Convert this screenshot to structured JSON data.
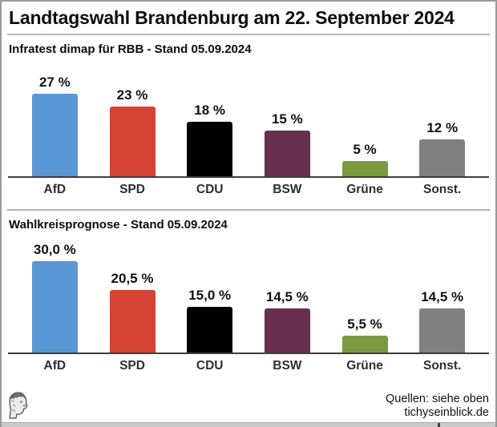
{
  "title": "Landtagswahl Brandenburg am 22. September 2024",
  "chart_data": [
    {
      "type": "bar",
      "title": "Infratest dimap für RBB - Stand 05.09.2024",
      "categories": [
        "AfD",
        "SPD",
        "CDU",
        "BSW",
        "Grüne",
        "Sonst."
      ],
      "values": [
        27,
        23,
        18,
        15,
        5,
        12
      ],
      "value_labels": [
        "27 %",
        "23 %",
        "18 %",
        "15 %",
        "5 %",
        "12 %"
      ],
      "colors": [
        "#5b97d4",
        "#d54434",
        "#000000",
        "#67304f",
        "#7a9a40",
        "#808080"
      ],
      "xlabel": "",
      "ylabel": "",
      "ylim": [
        0,
        35
      ],
      "grid": false,
      "legend": "none"
    },
    {
      "type": "bar",
      "title": "Wahlkreisprognose - Stand 05.09.2024",
      "categories": [
        "AfD",
        "SPD",
        "CDU",
        "BSW",
        "Grüne",
        "Sonst."
      ],
      "values": [
        30.0,
        20.5,
        15.0,
        14.5,
        5.5,
        14.5
      ],
      "value_labels": [
        "30,0 %",
        "20,5 %",
        "15,0 %",
        "14,5 %",
        "5,5 %",
        "14,5 %"
      ],
      "colors": [
        "#5b97d4",
        "#d54434",
        "#000000",
        "#67304f",
        "#7a9a40",
        "#808080"
      ],
      "xlabel": "",
      "ylabel": "",
      "ylim": [
        0,
        35
      ],
      "grid": false,
      "legend": "none"
    }
  ],
  "footer": {
    "logo_name": "tichys-einblick-head-logo",
    "source_line1": "Quellen: siehe oben",
    "source_line2": "tichyseinblick.de"
  }
}
